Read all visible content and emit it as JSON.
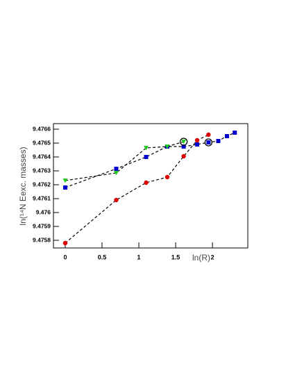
{
  "chart_data": {
    "type": "scatter",
    "x_label": "ln(R)",
    "y_label": "ln(¹⁴N Eexc. masses)",
    "xlim": [
      -0.16,
      2.48
    ],
    "ylim": [
      9.475745,
      9.47664
    ],
    "xticks": [
      0,
      0.5,
      1,
      1.5,
      2
    ],
    "yticks": [
      9.4758,
      9.4759,
      9.476,
      9.4761,
      9.4762,
      9.4763,
      9.4764,
      9.4765,
      9.4766
    ],
    "series": [
      {
        "color": "#dd0000",
        "marker": "circle",
        "line": "dashed",
        "x": [
          0,
          0.693,
          1.099,
          1.386,
          1.609,
          1.792,
          1.946
        ],
        "values": [
          9.47578,
          9.47609,
          9.476215,
          9.476255,
          9.476405,
          9.47652,
          9.47656
        ]
      },
      {
        "color": "#0000cc",
        "marker": "square",
        "line": "dashed",
        "x": [
          0,
          0.693,
          1.099,
          1.386,
          1.609,
          1.792,
          1.946,
          2.079,
          2.197,
          2.303
        ],
        "values": [
          9.47618,
          9.476315,
          9.4764,
          9.476475,
          9.476475,
          9.47649,
          9.476505,
          9.476515,
          9.47655,
          9.476575
        ]
      },
      {
        "color": "#22cc22",
        "marker": "triangle-down",
        "line": "dashed",
        "x": [
          0,
          0.693,
          1.099,
          1.386,
          1.609
        ],
        "values": [
          9.47623,
          9.476285,
          9.476465,
          9.476475,
          9.47651
        ]
      },
      {
        "color": "#000000",
        "marker": "open-circle",
        "line": "none",
        "x": [
          1.609,
          1.946
        ],
        "values": [
          9.47651,
          9.476505
        ]
      }
    ]
  }
}
